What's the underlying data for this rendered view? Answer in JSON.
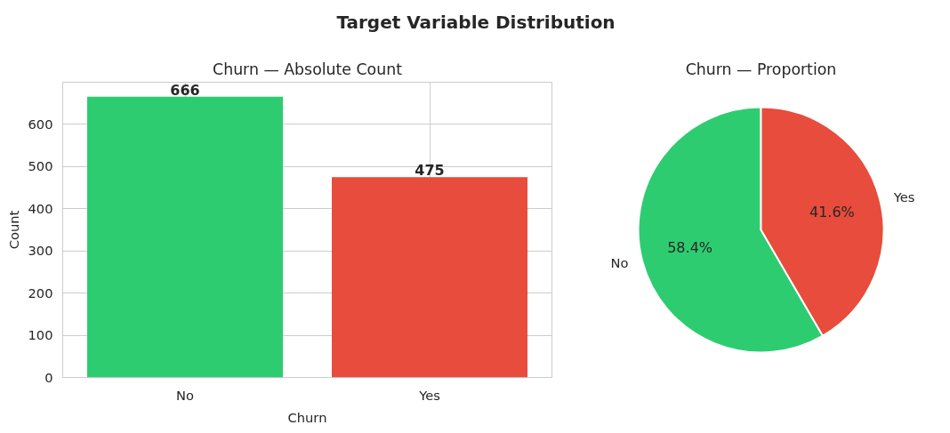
{
  "chart_data": [
    {
      "type": "other",
      "title": "Target Variable Distribution"
    },
    {
      "type": "bar",
      "title": "Churn — Absolute Count",
      "xlabel": "Churn",
      "ylabel": "Count",
      "categories": [
        "No",
        "Yes"
      ],
      "values": [
        666,
        475
      ],
      "colors": [
        "#2ecc71",
        "#e74c3c"
      ],
      "ylim": [
        0,
        700
      ],
      "yticks": [
        0,
        100,
        200,
        300,
        400,
        500,
        600
      ],
      "grid": true,
      "data_labels": true
    },
    {
      "type": "pie",
      "title": "Churn — Proportion",
      "categories": [
        "No",
        "Yes"
      ],
      "values": [
        58.4,
        41.6
      ],
      "colors": [
        "#2ecc71",
        "#e74c3c"
      ],
      "value_labels": [
        "58.4%",
        "41.6%"
      ]
    }
  ]
}
